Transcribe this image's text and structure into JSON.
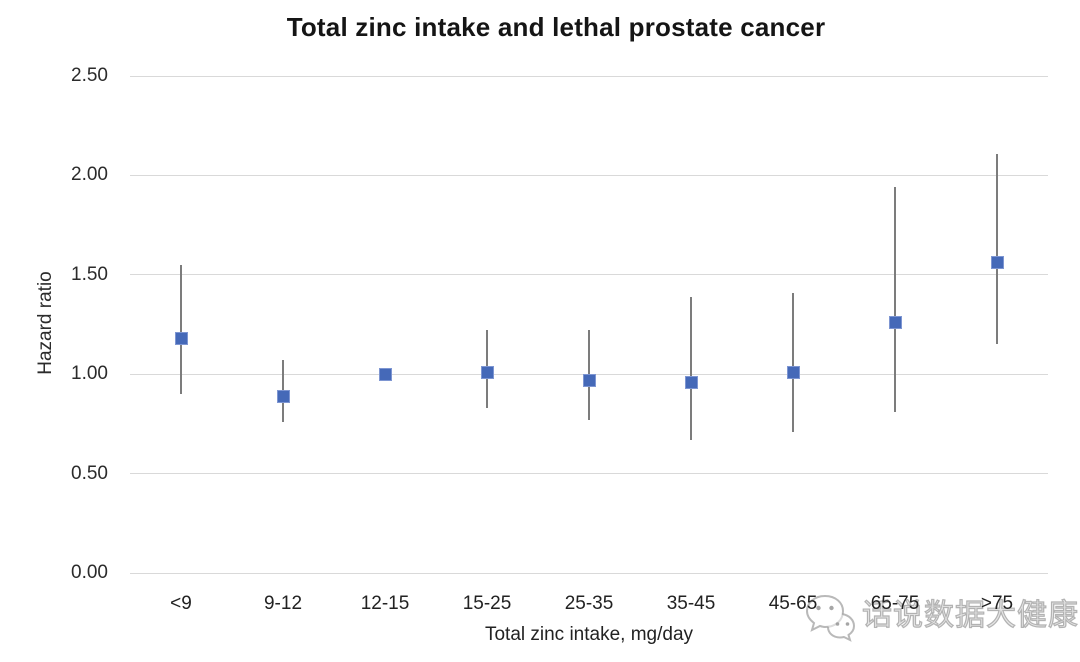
{
  "chart_data": {
    "type": "scatter",
    "title": "Total zinc intake and lethal prostate cancer",
    "xlabel": "Total zinc intake, mg/day",
    "ylabel": "Hazard ratio",
    "categories": [
      "<9",
      "9-12",
      "12-15",
      "15-25",
      "25-35",
      "35-45",
      "45-65",
      "65-75",
      ">75"
    ],
    "series": [
      {
        "name": "Hazard ratio (point estimate with 95% CI error bars)",
        "values": [
          1.18,
          0.89,
          1.0,
          1.01,
          0.97,
          0.96,
          1.01,
          1.26,
          1.56
        ],
        "ci_low": [
          0.9,
          0.76,
          1.0,
          0.83,
          0.77,
          0.67,
          0.71,
          0.81,
          1.15
        ],
        "ci_high": [
          1.55,
          1.07,
          1.0,
          1.22,
          1.22,
          1.39,
          1.41,
          1.94,
          2.11
        ]
      }
    ],
    "ylim": [
      0,
      2.5
    ],
    "yticks": [
      0.0,
      0.5,
      1.0,
      1.5,
      2.0,
      2.5
    ],
    "ytick_labels": [
      "0.00",
      "0.50",
      "1.00",
      "1.50",
      "2.00",
      "2.50"
    ],
    "grid": true,
    "legend": "none",
    "colors": {
      "marker_fill": "#4569b8",
      "marker_border": "#7e96d2",
      "errorbar": "#7c7c7c",
      "gridline": "#d9d9d9",
      "title_text": "#151515",
      "axis_text": "#2b2b2b"
    }
  },
  "watermark": {
    "icon": "wechat-icon",
    "text": "话说数据大健康"
  }
}
